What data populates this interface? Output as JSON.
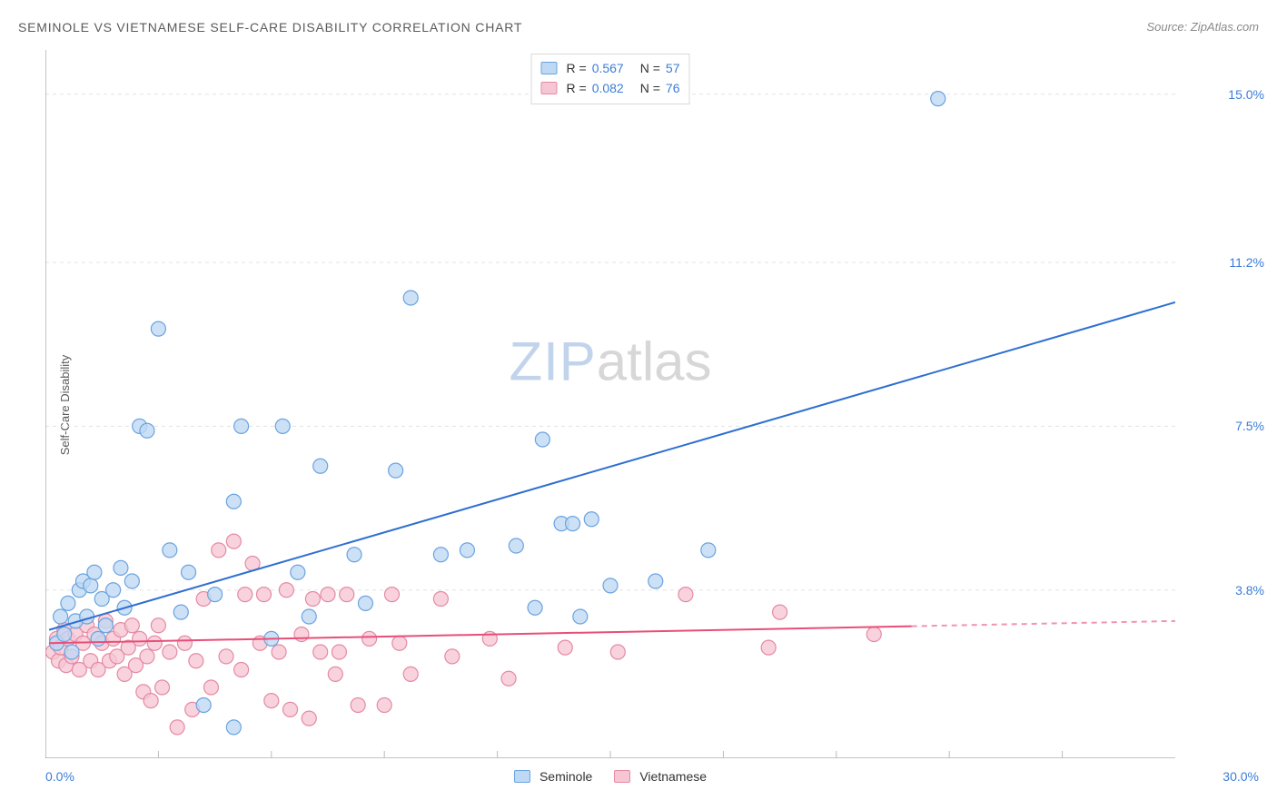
{
  "title": "SEMINOLE VS VIETNAMESE SELF-CARE DISABILITY CORRELATION CHART",
  "source": "Source: ZipAtlas.com",
  "ylabel": "Self-Care Disability",
  "watermark": {
    "zip": "ZIP",
    "atlas": "atlas"
  },
  "chart": {
    "type": "scatter",
    "background_color": "#ffffff",
    "grid_color": "#e3e3e3",
    "axis_color": "#888888",
    "tick_color": "#bbbbbb",
    "xlim": [
      0,
      30
    ],
    "ylim": [
      0,
      16
    ],
    "x_min_label": "0.0%",
    "x_max_label": "30.0%",
    "y_ticks": [
      3.8,
      7.5,
      11.2,
      15.0
    ],
    "y_tick_labels": [
      "3.8%",
      "7.5%",
      "11.2%",
      "15.0%"
    ],
    "x_ticks": [
      3,
      6,
      9,
      12,
      15,
      18,
      21,
      24,
      27
    ],
    "marker_radius": 8,
    "marker_stroke_width": 1.2,
    "line_width": 2,
    "series": [
      {
        "name": "Seminole",
        "fill": "#bfd8f3",
        "stroke": "#6aa3e0",
        "line_color": "#2e6fd1",
        "r_label": "R = ",
        "r_value": "0.567",
        "n_label": "N = ",
        "n_value": "57",
        "trend": {
          "x1": 0.1,
          "y1": 2.9,
          "x2": 30,
          "y2": 10.3,
          "solid_x2": 30
        },
        "points": [
          [
            0.3,
            2.6
          ],
          [
            0.4,
            3.2
          ],
          [
            0.5,
            2.8
          ],
          [
            0.6,
            3.5
          ],
          [
            0.7,
            2.4
          ],
          [
            0.8,
            3.1
          ],
          [
            0.9,
            3.8
          ],
          [
            1.0,
            4.0
          ],
          [
            1.1,
            3.2
          ],
          [
            1.2,
            3.9
          ],
          [
            1.3,
            4.2
          ],
          [
            1.4,
            2.7
          ],
          [
            1.5,
            3.6
          ],
          [
            1.6,
            3.0
          ],
          [
            1.8,
            3.8
          ],
          [
            2.0,
            4.3
          ],
          [
            2.1,
            3.4
          ],
          [
            2.3,
            4.0
          ],
          [
            2.5,
            7.5
          ],
          [
            2.7,
            7.4
          ],
          [
            3.0,
            9.7
          ],
          [
            3.3,
            4.7
          ],
          [
            3.6,
            3.3
          ],
          [
            3.8,
            4.2
          ],
          [
            4.2,
            1.2
          ],
          [
            4.5,
            3.7
          ],
          [
            5.0,
            0.7
          ],
          [
            5.2,
            7.5
          ],
          [
            5.0,
            5.8
          ],
          [
            6.0,
            2.7
          ],
          [
            6.3,
            7.5
          ],
          [
            6.7,
            4.2
          ],
          [
            7.0,
            3.2
          ],
          [
            7.3,
            6.6
          ],
          [
            8.2,
            4.6
          ],
          [
            8.5,
            3.5
          ],
          [
            9.3,
            6.5
          ],
          [
            9.7,
            10.4
          ],
          [
            10.5,
            4.6
          ],
          [
            11.2,
            4.7
          ],
          [
            12.5,
            4.8
          ],
          [
            13.0,
            3.4
          ],
          [
            13.2,
            7.2
          ],
          [
            13.7,
            5.3
          ],
          [
            14.0,
            5.3
          ],
          [
            14.2,
            3.2
          ],
          [
            14.5,
            5.4
          ],
          [
            15.0,
            3.9
          ],
          [
            16.2,
            4.0
          ],
          [
            17.6,
            4.7
          ],
          [
            23.7,
            14.9
          ]
        ]
      },
      {
        "name": "Vietnamese",
        "fill": "#f6c7d3",
        "stroke": "#e58aa3",
        "line_color": "#e84e78",
        "r_label": "R = ",
        "r_value": "0.082",
        "n_label": "N = ",
        "n_value": "76",
        "trend": {
          "x1": 0.1,
          "y1": 2.6,
          "x2": 30,
          "y2": 3.1,
          "solid_x2": 23
        },
        "points": [
          [
            0.2,
            2.4
          ],
          [
            0.3,
            2.7
          ],
          [
            0.35,
            2.2
          ],
          [
            0.4,
            2.5
          ],
          [
            0.5,
            2.9
          ],
          [
            0.55,
            2.1
          ],
          [
            0.6,
            2.7
          ],
          [
            0.7,
            2.3
          ],
          [
            0.8,
            2.8
          ],
          [
            0.9,
            2.0
          ],
          [
            1.0,
            2.6
          ],
          [
            1.1,
            3.0
          ],
          [
            1.2,
            2.2
          ],
          [
            1.3,
            2.8
          ],
          [
            1.4,
            2.0
          ],
          [
            1.5,
            2.6
          ],
          [
            1.6,
            3.1
          ],
          [
            1.7,
            2.2
          ],
          [
            1.8,
            2.7
          ],
          [
            1.9,
            2.3
          ],
          [
            2.0,
            2.9
          ],
          [
            2.1,
            1.9
          ],
          [
            2.2,
            2.5
          ],
          [
            2.3,
            3.0
          ],
          [
            2.4,
            2.1
          ],
          [
            2.5,
            2.7
          ],
          [
            2.6,
            1.5
          ],
          [
            2.7,
            2.3
          ],
          [
            2.8,
            1.3
          ],
          [
            2.9,
            2.6
          ],
          [
            3.0,
            3.0
          ],
          [
            3.1,
            1.6
          ],
          [
            3.3,
            2.4
          ],
          [
            3.5,
            0.7
          ],
          [
            3.7,
            2.6
          ],
          [
            3.9,
            1.1
          ],
          [
            4.0,
            2.2
          ],
          [
            4.2,
            3.6
          ],
          [
            4.4,
            1.6
          ],
          [
            4.6,
            4.7
          ],
          [
            4.8,
            2.3
          ],
          [
            5.0,
            4.9
          ],
          [
            5.2,
            2.0
          ],
          [
            5.3,
            3.7
          ],
          [
            5.5,
            4.4
          ],
          [
            5.7,
            2.6
          ],
          [
            5.8,
            3.7
          ],
          [
            6.0,
            1.3
          ],
          [
            6.2,
            2.4
          ],
          [
            6.4,
            3.8
          ],
          [
            6.5,
            1.1
          ],
          [
            6.8,
            2.8
          ],
          [
            7.0,
            0.9
          ],
          [
            7.1,
            3.6
          ],
          [
            7.3,
            2.4
          ],
          [
            7.5,
            3.7
          ],
          [
            7.7,
            1.9
          ],
          [
            7.8,
            2.4
          ],
          [
            8.0,
            3.7
          ],
          [
            8.3,
            1.2
          ],
          [
            8.6,
            2.7
          ],
          [
            9.0,
            1.2
          ],
          [
            9.2,
            3.7
          ],
          [
            9.4,
            2.6
          ],
          [
            9.7,
            1.9
          ],
          [
            10.5,
            3.6
          ],
          [
            10.8,
            2.3
          ],
          [
            11.8,
            2.7
          ],
          [
            12.3,
            1.8
          ],
          [
            13.8,
            2.5
          ],
          [
            15.2,
            2.4
          ],
          [
            17.0,
            3.7
          ],
          [
            19.2,
            2.5
          ],
          [
            19.5,
            3.3
          ],
          [
            22.0,
            2.8
          ]
        ]
      }
    ]
  },
  "legend_bottom": {
    "items": [
      "Seminole",
      "Vietnamese"
    ]
  }
}
